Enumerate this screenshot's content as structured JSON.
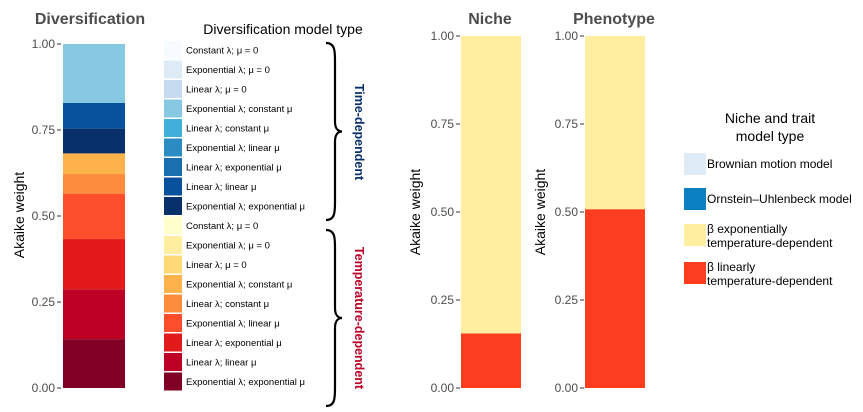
{
  "chart_data": [
    {
      "type": "bar",
      "stacked": true,
      "title": "Diversification",
      "ylabel": "Akaike weight",
      "ylim": [
        0,
        1
      ],
      "yticks": [
        "0.00",
        "0.25",
        "0.50",
        "0.75",
        "1.00"
      ],
      "legend_title": "Diversification model type",
      "segments": [
        {
          "name": "Exponential λ; exponential μ",
          "color": "#800026",
          "value": 0.142
        },
        {
          "name": "Linear λ; linear μ",
          "color": "#bd0026",
          "value": 0.145
        },
        {
          "name": "Linear λ; exponential μ",
          "color": "#e31a1c",
          "value": 0.146
        },
        {
          "name": "Exponential λ; linear μ",
          "color": "#fc4e2a",
          "value": 0.132
        },
        {
          "name": "Linear λ; constant μ",
          "color": "#fd8d3c",
          "value": 0.057
        },
        {
          "name": "Exponential λ; constant μ",
          "color": "#feb24c",
          "value": 0.06
        },
        {
          "name": "Linear λ; μ = 0",
          "color": "#fed976",
          "value": 0.0
        },
        {
          "name": "Exponential λ; μ = 0",
          "color": "#ffeda0",
          "value": 0.0
        },
        {
          "name": "Constant λ; μ = 0",
          "color": "#ffffcc",
          "value": 0.0
        },
        {
          "name": "Exponential λ; exponential μ",
          "color": "#08306b",
          "value": 0.072
        },
        {
          "name": "Linear λ; linear μ",
          "color": "#08519c",
          "value": 0.075
        },
        {
          "name": "Linear λ; exponential μ",
          "color": "#2171b5",
          "value": 0.0
        },
        {
          "name": "Exponential λ; linear μ",
          "color": "#4292c6",
          "value": 0.0
        },
        {
          "name": "Linear λ; constant μ",
          "color": "#6baed6",
          "value": 0.0
        },
        {
          "name": "Exponential λ; constant μ",
          "color": "#87c8e2",
          "value": 0.171
        },
        {
          "name": "Linear λ; μ = 0",
          "color": "#c6dbef",
          "value": 0.0
        },
        {
          "name": "Exponential λ; μ = 0",
          "color": "#deebf7",
          "value": 0.0
        },
        {
          "name": "Constant λ; μ = 0",
          "color": "#f7fbff",
          "value": 0.0
        }
      ],
      "legend_items": [
        {
          "label": "Constant λ; μ = 0",
          "color": "#f7fbff"
        },
        {
          "label": "Exponential λ; μ = 0",
          "color": "#deebf7"
        },
        {
          "label": "Linear λ; μ = 0",
          "color": "#c6dbef"
        },
        {
          "label": "Exponential λ; constant μ",
          "color": "#87c8e2"
        },
        {
          "label": "Linear λ; constant μ",
          "color": "#40afda"
        },
        {
          "label": "Exponential λ; linear μ",
          "color": "#2b8cc4"
        },
        {
          "label": "Linear λ; exponential μ",
          "color": "#1a6fb0"
        },
        {
          "label": "Linear λ; linear μ",
          "color": "#08519c"
        },
        {
          "label": "Exponential λ; exponential μ",
          "color": "#08306b"
        },
        {
          "label": "Constant λ; μ = 0",
          "color": "#ffffcc"
        },
        {
          "label": "Exponential λ; μ = 0",
          "color": "#ffeda0"
        },
        {
          "label": "Linear λ; μ = 0",
          "color": "#fed976"
        },
        {
          "label": "Exponential λ; constant μ",
          "color": "#feb24c"
        },
        {
          "label": "Linear λ; constant μ",
          "color": "#fd8d3c"
        },
        {
          "label": "Exponential λ; linear μ",
          "color": "#fc4e2a"
        },
        {
          "label": "Linear λ; exponential μ",
          "color": "#e31a1c"
        },
        {
          "label": "Linear λ; linear μ",
          "color": "#bd0026"
        },
        {
          "label": "Exponential λ; exponential μ",
          "color": "#800026"
        }
      ],
      "groups": [
        {
          "label": "Time-dependent",
          "color": "#08306b"
        },
        {
          "label": "Temperature-dependent",
          "color": "#bd0026"
        }
      ]
    },
    {
      "type": "bar",
      "stacked": true,
      "title": "Niche",
      "ylabel": "Akaike weight",
      "ylim": [
        0,
        1
      ],
      "yticks": [
        "0.00",
        "0.25",
        "0.50",
        "0.75",
        "1.00"
      ],
      "segments": [
        {
          "name": "β linearly temperature-dependent",
          "color": "#fc3d20",
          "value": 0.155
        },
        {
          "name": "β exponentially temperature-dependent",
          "color": "#ffeda0",
          "value": 0.845
        }
      ]
    },
    {
      "type": "bar",
      "stacked": true,
      "title": "Phenotype",
      "ylabel": "Akaike weight",
      "ylim": [
        0,
        1
      ],
      "yticks": [
        "0.00",
        "0.25",
        "0.50",
        "0.75",
        "1.00"
      ],
      "segments": [
        {
          "name": "β linearly temperature-dependent",
          "color": "#fc3d20",
          "value": 0.508
        },
        {
          "name": "β exponentially temperature-dependent",
          "color": "#ffeda0",
          "value": 0.492
        }
      ]
    }
  ],
  "niche_trait_legend": {
    "title_line1": "Niche and trait",
    "title_line2": "model type",
    "items": [
      {
        "lines": [
          "Brownian motion model"
        ],
        "color": "#deebf7"
      },
      {
        "lines": [
          "Ornstein–Uhlenbeck model"
        ],
        "color": "#0a80c0"
      },
      {
        "lines": [
          "β exponentially",
          "temperature-dependent"
        ],
        "color": "#ffeda0"
      },
      {
        "lines": [
          "β linearly",
          "temperature-dependent"
        ],
        "color": "#fc3d20"
      }
    ]
  }
}
